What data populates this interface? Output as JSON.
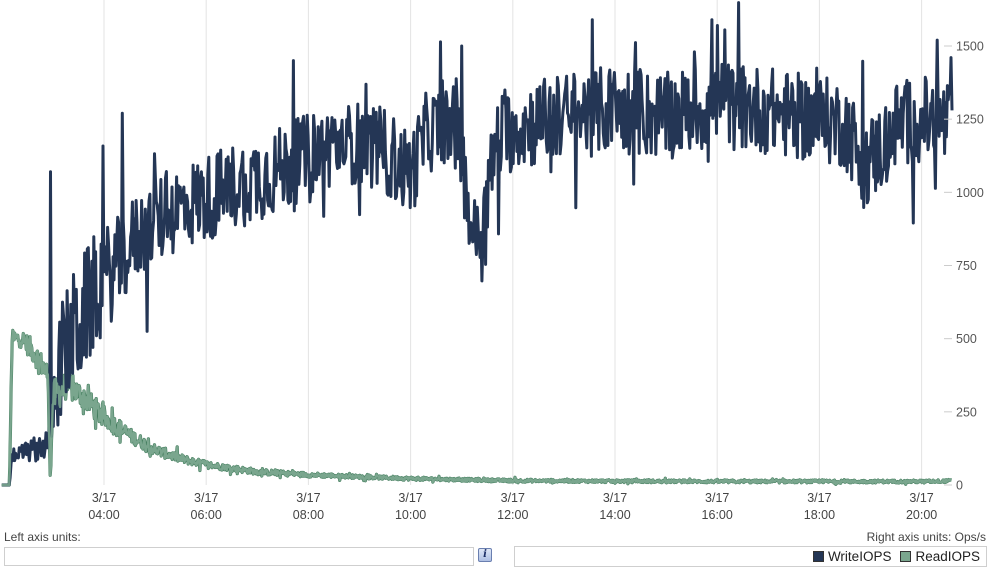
{
  "colors": {
    "write": "#243655",
    "read": "#7aa68e",
    "read_edge": "#3f7a5a",
    "grid": "#e3e3e3"
  },
  "footer": {
    "left_axis_label": "Left axis units:",
    "left_axis_value": "",
    "right_axis_label": "Right axis units: Ops/s",
    "info_icon_glyph": "i"
  },
  "legend": [
    {
      "name": "WriteIOPS",
      "color": "#243655"
    },
    {
      "name": "ReadIOPS",
      "color": "#7aa68e"
    }
  ],
  "chart_data": {
    "type": "line",
    "title": "",
    "xlabel": "",
    "ylabel": "Ops/s",
    "y_axis_side": "right",
    "ylim": [
      0,
      1600
    ],
    "yticks": [
      0,
      250,
      500,
      750,
      1000,
      1250,
      1500
    ],
    "grid": {
      "vertical": true,
      "horizontal": false
    },
    "legend_position": "bottom-right",
    "x_tick_labels": [
      {
        "date": "3/17",
        "time": "04:00"
      },
      {
        "date": "3/17",
        "time": "06:00"
      },
      {
        "date": "3/17",
        "time": "08:00"
      },
      {
        "date": "3/17",
        "time": "10:00"
      },
      {
        "date": "3/17",
        "time": "12:00"
      },
      {
        "date": "3/17",
        "time": "14:00"
      },
      {
        "date": "3/17",
        "time": "16:00"
      },
      {
        "date": "3/17",
        "time": "18:00"
      },
      {
        "date": "3/17",
        "time": "20:00"
      }
    ],
    "x_range_hours": [
      2.0,
      20.6
    ],
    "series": [
      {
        "name": "WriteIOPS",
        "hours": [
          2.0,
          2.15,
          2.2,
          2.6,
          2.95,
          3.0,
          3.2,
          3.5,
          3.8,
          4.0,
          4.3,
          4.6,
          5.0,
          5.5,
          6.0,
          6.5,
          7.0,
          7.5,
          8.0,
          8.5,
          9.0,
          9.5,
          10.0,
          10.3,
          10.8,
          11.0,
          11.2,
          11.4,
          11.5,
          11.7,
          12.0,
          12.5,
          13.0,
          13.5,
          14.0,
          14.5,
          15.0,
          15.5,
          16.0,
          16.5,
          17.0,
          17.5,
          18.0,
          18.5,
          18.9,
          19.2,
          19.5,
          20.0,
          20.6
        ],
        "values": [
          0,
          0,
          100,
          120,
          150,
          300,
          450,
          550,
          650,
          700,
          760,
          840,
          900,
          950,
          980,
          1020,
          1050,
          1080,
          1130,
          1160,
          1170,
          1140,
          1060,
          1200,
          1250,
          1120,
          870,
          850,
          1000,
          1180,
          1220,
          1240,
          1260,
          1270,
          1290,
          1270,
          1260,
          1280,
          1300,
          1290,
          1280,
          1260,
          1250,
          1230,
          1100,
          1150,
          1230,
          1250,
          1230
        ],
        "noise": [
          0,
          0,
          20,
          40,
          60,
          160,
          200,
          220,
          200,
          180,
          160,
          150,
          150,
          150,
          150,
          150,
          150,
          150,
          140,
          140,
          140,
          150,
          150,
          140,
          140,
          150,
          120,
          120,
          140,
          150,
          150,
          150,
          150,
          150,
          150,
          150,
          150,
          150,
          150,
          150,
          150,
          150,
          150,
          150,
          150,
          150,
          150,
          150,
          150
        ],
        "spikes": [
          {
            "hour": 2.95,
            "value": 1070
          },
          {
            "hour": 4.35,
            "value": 1270
          },
          {
            "hour": 7.7,
            "value": 1450
          },
          {
            "hour": 13.55,
            "value": 1590
          },
          {
            "hour": 15.9,
            "value": 1590
          },
          {
            "hour": 16.0,
            "value": 1570
          },
          {
            "hour": 11.0,
            "value": 1500
          },
          {
            "hour": 20.3,
            "value": 1520
          }
        ]
      },
      {
        "name": "ReadIOPS",
        "hours": [
          2.0,
          2.15,
          2.2,
          2.4,
          2.6,
          2.9,
          2.95,
          3.0,
          3.3,
          3.6,
          4.0,
          4.5,
          5.0,
          5.5,
          6.0,
          7.0,
          8.0,
          9.0,
          10.0,
          11.0,
          12.0,
          14.0,
          16.0,
          18.0,
          20.0,
          20.6
        ],
        "values": [
          0,
          0,
          500,
          500,
          460,
          380,
          20,
          300,
          340,
          300,
          230,
          170,
          120,
          90,
          70,
          45,
          35,
          28,
          22,
          18,
          15,
          13,
          12,
          12,
          12,
          14
        ],
        "noise": [
          0,
          0,
          30,
          30,
          40,
          40,
          0,
          60,
          50,
          40,
          40,
          25,
          20,
          15,
          12,
          10,
          8,
          6,
          6,
          5,
          5,
          5,
          5,
          5,
          5,
          5
        ],
        "spikes": []
      }
    ]
  }
}
